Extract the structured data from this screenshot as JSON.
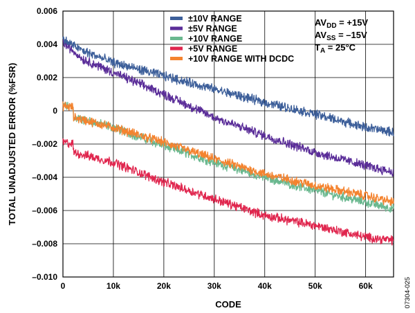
{
  "chart_data": {
    "type": "line",
    "xlabel": "CODE",
    "ylabel": "TOTAL UNADJUSTED ERROR (%FSR)",
    "xlim": [
      0,
      65535
    ],
    "ylim": [
      -0.01,
      0.006
    ],
    "x_ticks": [
      "0",
      "10k",
      "20k",
      "30k",
      "40k",
      "50k",
      "60k"
    ],
    "y_ticks": [
      "0.006",
      "0.004",
      "0.002",
      "0",
      "–0.002",
      "–0.004",
      "–0.006",
      "–0.008",
      "–0.010"
    ],
    "grid": true,
    "legend_position": "top-right",
    "conditions": {
      "avdd_main": "AV",
      "avdd_sub": "DD",
      "avdd_value": " = +15V",
      "avss_main": "AV",
      "avss_sub": "SS",
      "avss_value": " = –15V",
      "ta_main": "T",
      "ta_sub": "A",
      "ta_value": " = 25°C"
    },
    "figure_number": "07304-025",
    "series": [
      {
        "name": "±10V RANGE",
        "color": "#3d5f9a",
        "x": [
          0,
          4000,
          10000,
          20000,
          30000,
          40000,
          50000,
          60000,
          65535
        ],
        "y": [
          0.0043,
          0.0036,
          0.0029,
          0.0021,
          0.0013,
          0.0005,
          -0.0002,
          -0.001,
          -0.0013
        ]
      },
      {
        "name": "±5V RANGE",
        "color": "#5b2e99",
        "x": [
          0,
          4000,
          10000,
          20000,
          30000,
          40000,
          50000,
          60000,
          65535
        ],
        "y": [
          0.0041,
          0.0031,
          0.0023,
          0.001,
          -0.0004,
          -0.0015,
          -0.0025,
          -0.0033,
          -0.0037
        ]
      },
      {
        "name": "+10V RANGE",
        "color": "#6ab88f",
        "x": [
          0,
          2000,
          2100,
          10000,
          20000,
          30000,
          40000,
          50000,
          60000,
          65535
        ],
        "y": [
          0.0003,
          0.0002,
          -0.0004,
          -0.001,
          -0.0021,
          -0.0031,
          -0.004,
          -0.0048,
          -0.0055,
          -0.0059
        ]
      },
      {
        "name": "+5V RANGE",
        "color": "#e0264e",
        "x": [
          0,
          2000,
          2100,
          10000,
          20000,
          30000,
          40000,
          50000,
          60000,
          65535
        ],
        "y": [
          -0.0019,
          -0.002,
          -0.0025,
          -0.0031,
          -0.0043,
          -0.0053,
          -0.0063,
          -0.0069,
          -0.0076,
          -0.0078
        ]
      },
      {
        "name": "+10V RANGE WITH DCDC",
        "color": "#f4832f",
        "x": [
          0,
          2000,
          2100,
          10000,
          20000,
          30000,
          40000,
          50000,
          60000,
          65535
        ],
        "y": [
          0.0003,
          0.0002,
          -0.0004,
          -0.001,
          -0.0019,
          -0.0029,
          -0.0038,
          -0.0045,
          -0.0051,
          -0.0055
        ]
      }
    ]
  }
}
